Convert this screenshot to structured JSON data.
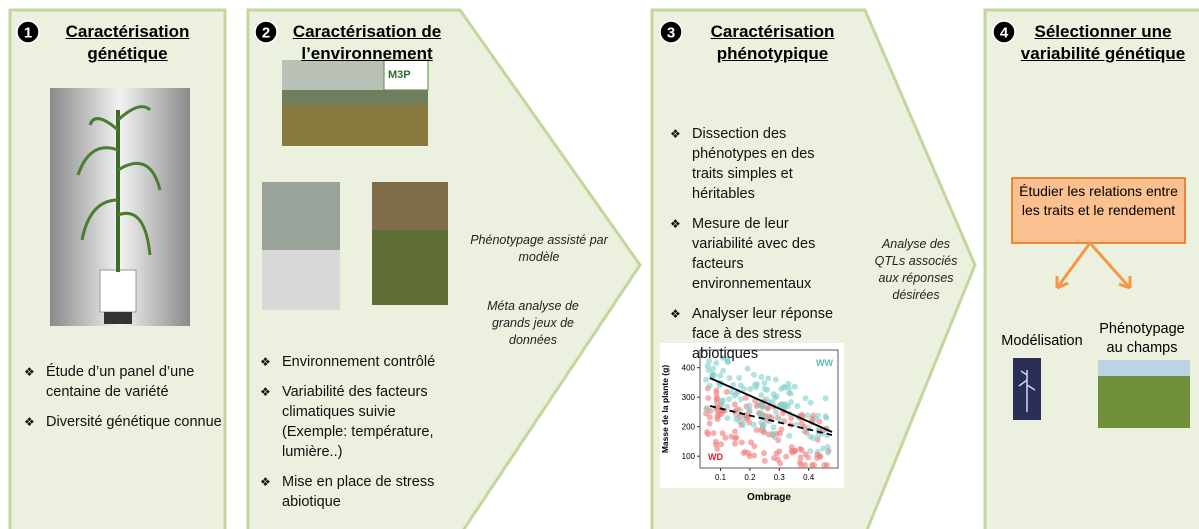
{
  "steps": [
    {
      "number": "1",
      "title": [
        "Caractérisation",
        "génétique"
      ],
      "bullets": [
        "Étude d’un panel d’une centaine de variété",
        "Diversité génétique connue"
      ]
    },
    {
      "number": "2",
      "title": [
        "Caractérisation de",
        "l’environnement"
      ],
      "bullets": [
        "Environnement contrôlé",
        "Variabilité des facteurs climatiques suivie (Exemple: température, lumière..)",
        "Mise en place de stress abiotique"
      ]
    },
    {
      "number": "3",
      "title": [
        "Caractérisation",
        "phénotypique"
      ],
      "bullets": [
        "Dissection des phénotypes en des traits simples et héritables",
        "Mesure de leur variabilité avec des facteurs environnementaux",
        "Analyser leur réponse face à des stress abiotiques"
      ]
    },
    {
      "number": "4",
      "title": [
        "Sélectionner une",
        "variabilité génétique"
      ],
      "box": "Étudier les relations entre les traits et le rendement",
      "labels": [
        "Modélisation",
        "Phénotypage au champs"
      ]
    }
  ],
  "arrows": [
    {
      "texts": [
        "Phénotypage assisté par modèle",
        "Méta analyse de grands jeux de données"
      ]
    },
    {
      "texts": [
        "Analyse des QTLs associés aux réponses désirées"
      ]
    }
  ],
  "logo": "M3P",
  "scatter": {
    "ylabel": "Masse de la plante (g)",
    "xlabel": "Ombrage",
    "xticks": [
      0.1,
      0.2,
      0.3,
      0.4
    ],
    "yticks": [
      100,
      200,
      300,
      400
    ],
    "xlim": [
      0.03,
      0.5
    ],
    "ylim": [
      60,
      460
    ],
    "groups": [
      "WW",
      "WD"
    ]
  }
}
